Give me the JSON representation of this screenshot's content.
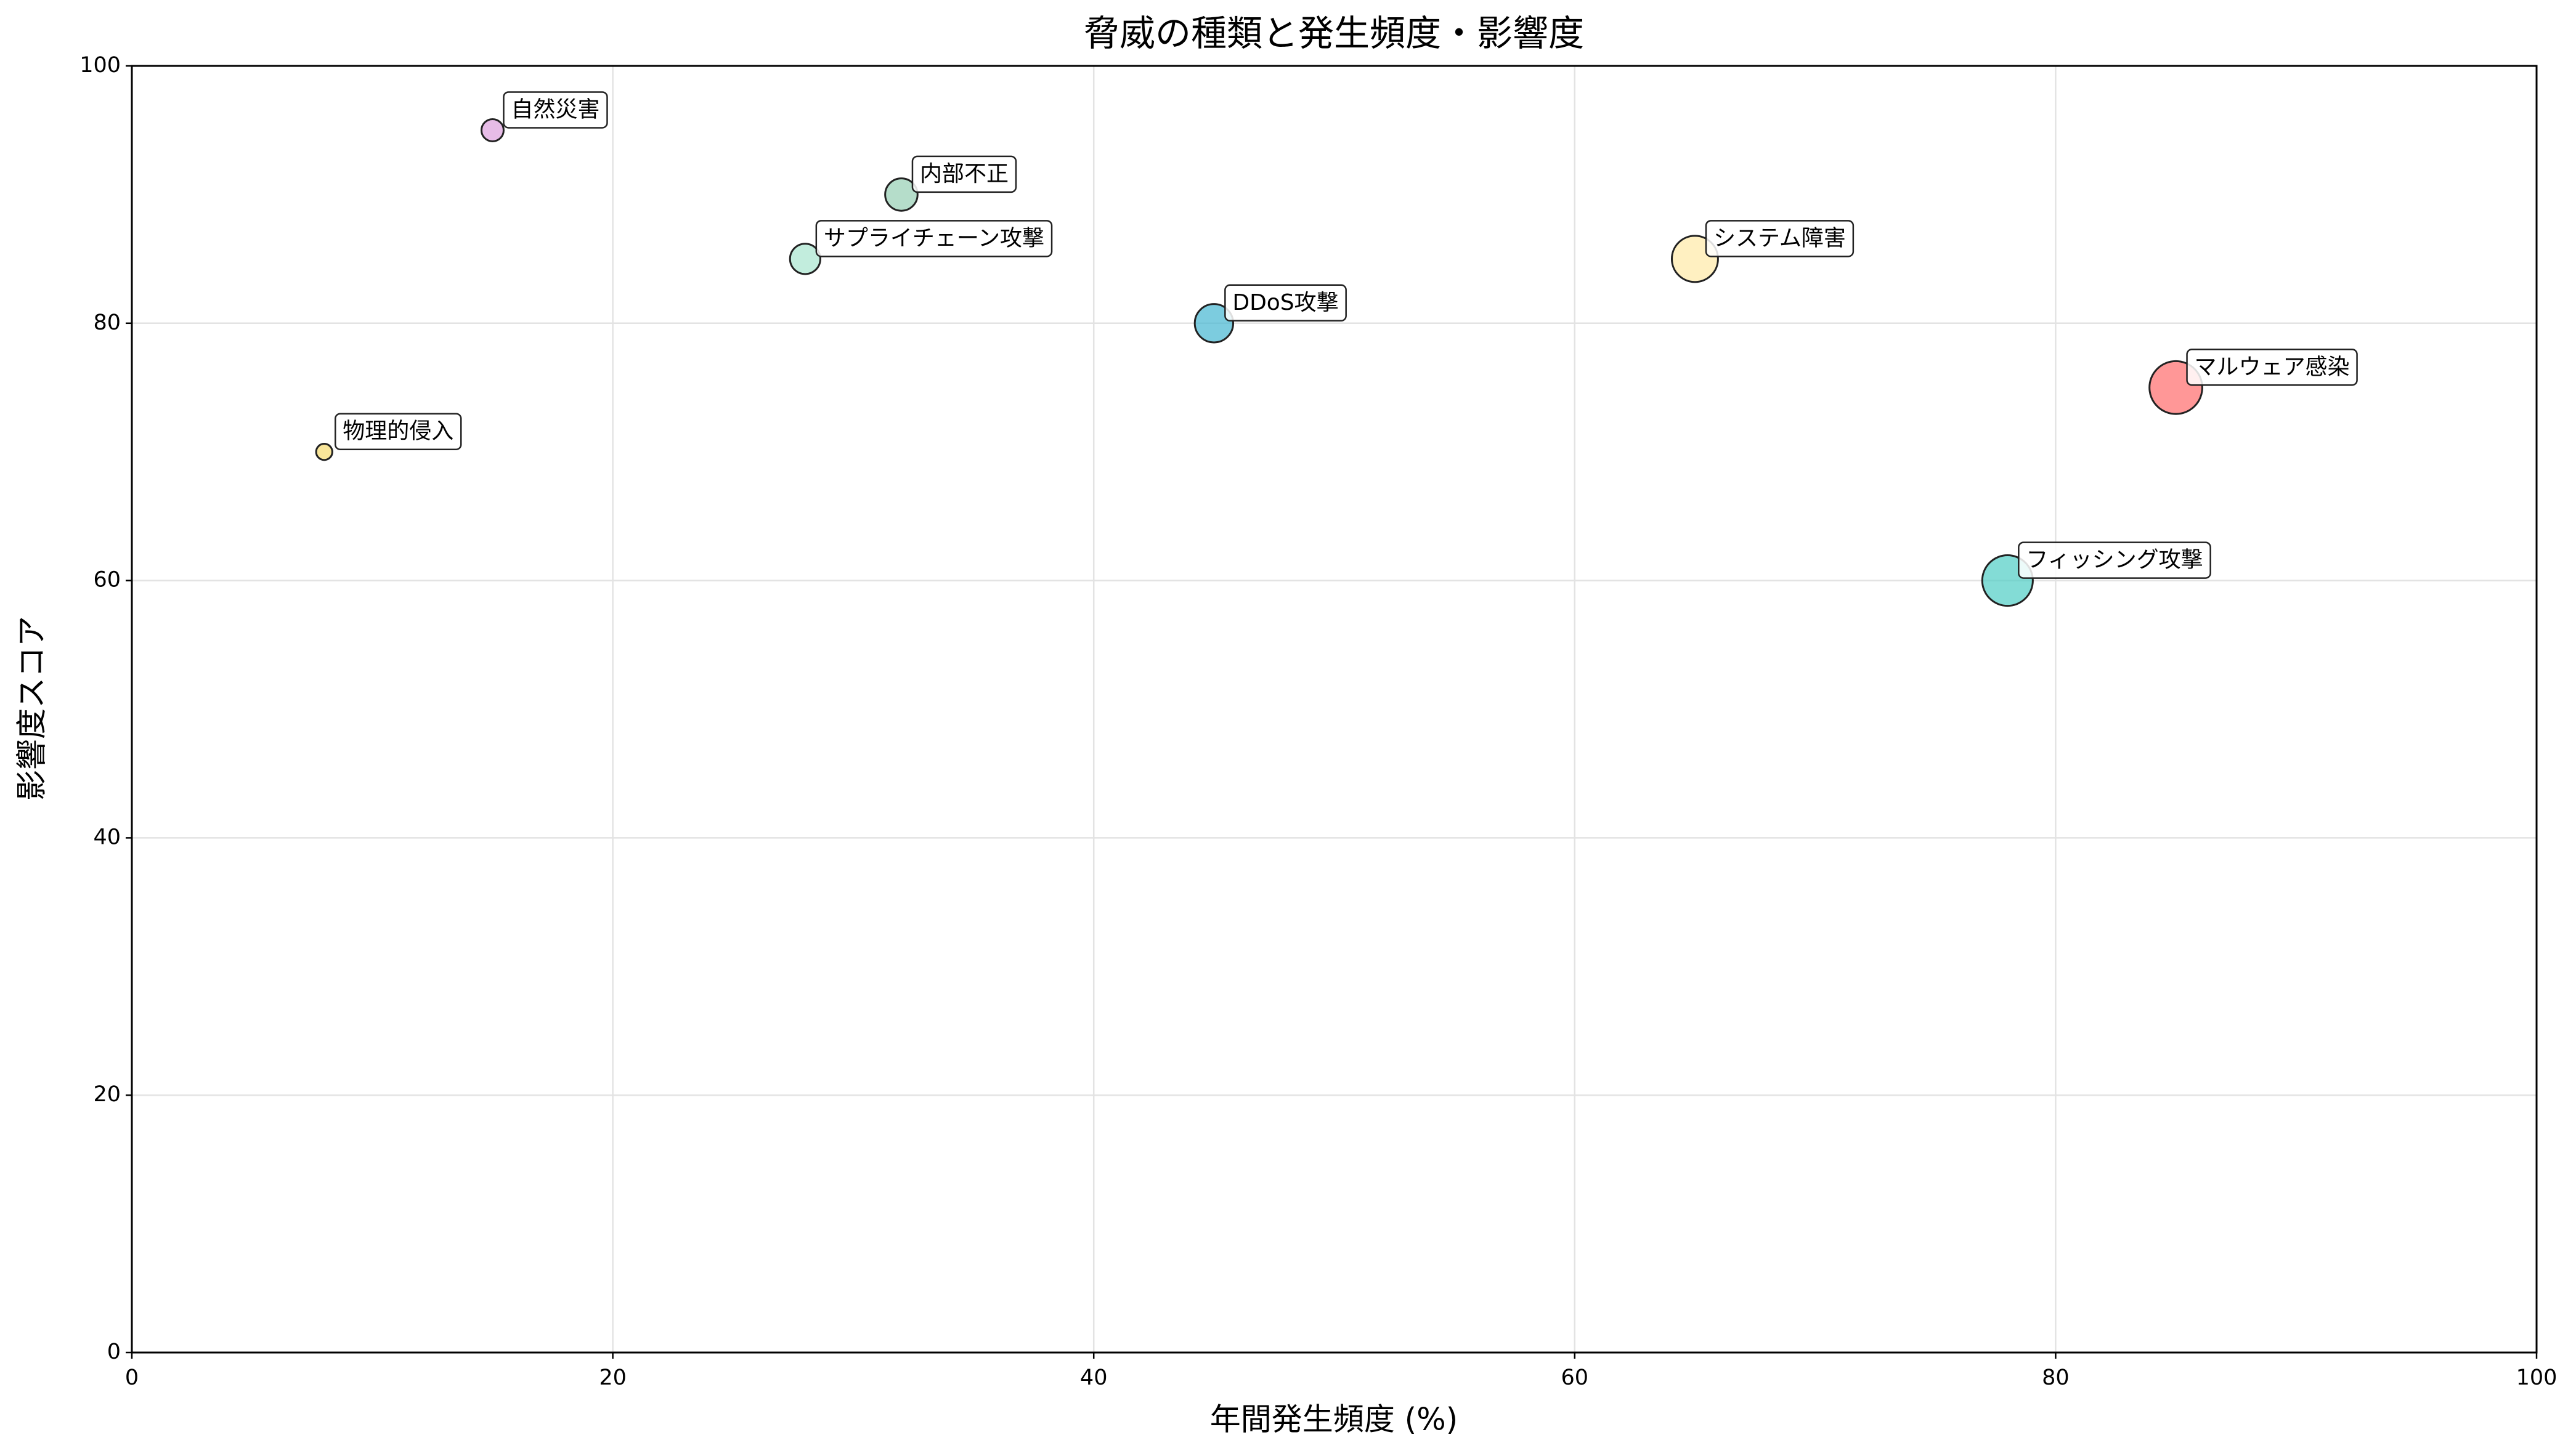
{
  "chart_data": {
    "type": "scatter",
    "title": "脅威の種類と発生頻度・影響度",
    "x_label": "年間発生頻度 (%)",
    "y_label": "影響度スコア",
    "labels": [
      "マルウェア感染",
      "フィッシング攻撃",
      "システム障害",
      "DDoS攻撃",
      "内部不正",
      "サプライチェーン攻撃",
      "自然災害",
      "物理的侵入"
    ],
    "x": [
      85,
      78,
      65,
      45,
      32,
      28,
      15,
      8
    ],
    "y": [
      75,
      60,
      85,
      80,
      90,
      85,
      95,
      70
    ],
    "sizes": [
      850,
      780,
      650,
      450,
      320,
      280,
      150,
      80
    ],
    "colors": [
      "#ff6b6b",
      "#4ecdc4",
      "#ffeaa7",
      "#45b7d1",
      "#96ceb4",
      "#a8e6cf",
      "#dda0dd",
      "#f7dc6f"
    ],
    "xlim": [
      0,
      100
    ],
    "ylim": [
      0,
      100
    ],
    "xticks": [
      0,
      20,
      40,
      60,
      80,
      100
    ],
    "yticks": [
      0,
      20,
      40,
      60,
      80,
      100
    ],
    "grid": true
  }
}
